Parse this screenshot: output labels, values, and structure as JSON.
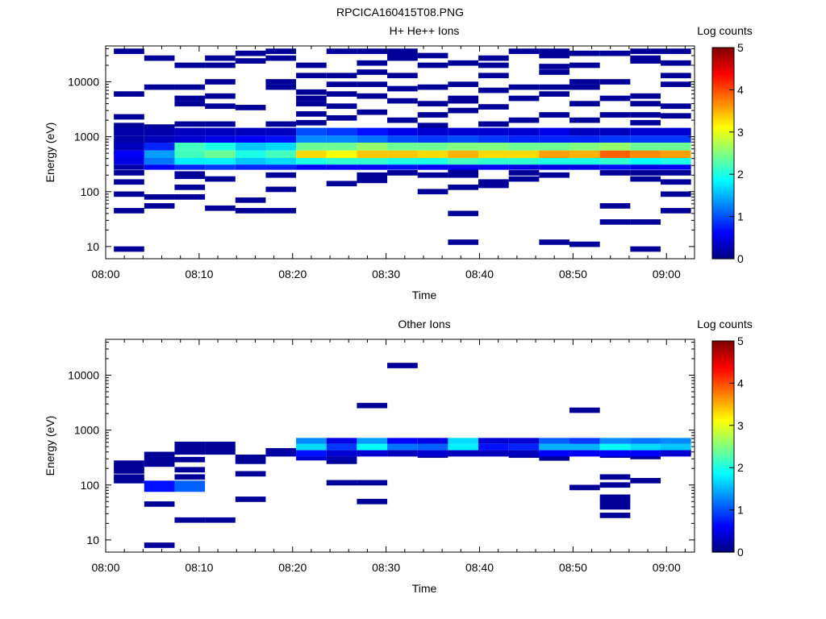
{
  "figure_title": "RPCICA160415T08.PNG",
  "chart_data": [
    {
      "type": "heatmap",
      "title": "H+ He++ Ions",
      "xlabel": "Time",
      "ylabel": "Energy (eV)",
      "colorbar_label": "Log counts",
      "colorbar_range": [
        0,
        5
      ],
      "colorbar_ticks": [
        "0",
        "1",
        "2",
        "3",
        "4",
        "5"
      ],
      "colormap": "jet",
      "y_scale": "log",
      "ylim": [
        6,
        45000
      ],
      "y_ticks": [
        "10",
        "100",
        "1000",
        "10000"
      ],
      "xlim": [
        "08:00",
        "09:03"
      ],
      "x_ticks": [
        "08:00",
        "08:10",
        "08:20",
        "08:30",
        "08:40",
        "08:50",
        "09:00"
      ],
      "time_bins": [
        "08:02:30",
        "08:05:45",
        "08:09:00",
        "08:12:15",
        "08:15:30",
        "08:18:45",
        "08:22:00",
        "08:25:15",
        "08:28:30",
        "08:31:45",
        "08:35:00",
        "08:38:15",
        "08:41:30",
        "08:44:45",
        "08:48:00",
        "08:51:15",
        "08:54:30",
        "08:57:45",
        "09:01:00"
      ],
      "bands": [
        {
          "emin": 780,
          "emax": 1050,
          "levels": [
            0.2,
            0.3,
            0.4,
            0.5,
            0.6,
            0.7,
            1.3,
            1.3,
            1.2,
            1.0,
            0.9,
            1.0,
            0.9,
            0.8,
            0.8,
            0.8,
            0.9,
            0.9,
            0.9
          ]
        },
        {
          "emin": 1050,
          "emax": 1450,
          "levels": [
            0.2,
            0.2,
            0.3,
            0.3,
            0.3,
            0.3,
            1.0,
            0.9,
            0.7,
            0.5,
            0.4,
            0.4,
            0.4,
            0.4,
            0.5,
            0.3,
            0.3,
            0.4,
            0.4
          ]
        },
        {
          "emin": 560,
          "emax": 780,
          "levels": [
            0.3,
            0.8,
            2.2,
            2.0,
            1.6,
            1.7,
            2.4,
            2.4,
            2.6,
            2.4,
            2.4,
            2.5,
            2.5,
            2.4,
            2.4,
            2.5,
            2.6,
            2.4,
            2.4
          ]
        },
        {
          "emin": 410,
          "emax": 560,
          "levels": [
            0.6,
            1.4,
            2.2,
            2.4,
            2.0,
            2.2,
            3.3,
            3.1,
            3.4,
            3.4,
            3.3,
            3.5,
            3.3,
            3.3,
            3.6,
            3.5,
            3.9,
            3.7,
            3.6
          ]
        },
        {
          "emin": 310,
          "emax": 410,
          "levels": [
            0.5,
            1.2,
            1.8,
            1.8,
            1.6,
            1.7,
            2.0,
            2.1,
            2.1,
            2.0,
            2.0,
            2.2,
            2.1,
            2.1,
            2.0,
            2.0,
            2.1,
            1.9,
            2.0
          ]
        },
        {
          "emin": 250,
          "emax": 310,
          "levels": [
            0.2,
            0.6,
            0.8,
            0.9,
            0.8,
            0.8,
            0.6,
            0.6,
            0.6,
            0.7,
            0.6,
            0.6,
            0.6,
            0.5,
            0.5,
            0.5,
            0.7,
            0.5,
            0.6
          ]
        }
      ],
      "sparse_bins": [
        {
          "t": 0,
          "e": [
            36000,
            6000,
            2300,
            1600,
            700,
            500,
            220,
            150,
            90,
            45,
            9
          ]
        },
        {
          "t": 1,
          "e": [
            27000,
            8000,
            1500,
            80,
            55
          ]
        },
        {
          "t": 2,
          "e": [
            20000,
            8000,
            5000,
            4000,
            1700,
            210,
            190,
            120,
            80
          ]
        },
        {
          "t": 3,
          "e": [
            27000,
            20000,
            10000,
            5500,
            3600,
            1700,
            170,
            50
          ]
        },
        {
          "t": 4,
          "e": [
            33000,
            24000,
            3400,
            70,
            45
          ]
        },
        {
          "t": 5,
          "e": [
            36000,
            27000,
            10000,
            8000,
            1700,
            200,
            110,
            45
          ]
        },
        {
          "t": 6,
          "e": [
            20000,
            13000,
            6500,
            5000,
            4000,
            2600,
            1800
          ]
        },
        {
          "t": 7,
          "e": [
            36000,
            13000,
            9000,
            6000,
            3600,
            2200,
            140
          ]
        },
        {
          "t": 8,
          "e": [
            36000,
            22000,
            15000,
            9000,
            5500,
            2800,
            200,
            160
          ]
        },
        {
          "t": 9,
          "e": [
            36000,
            30000,
            27000,
            13000,
            7500,
            4500,
            2000,
            220
          ]
        },
        {
          "t": 10,
          "e": [
            30000,
            20000,
            8000,
            4000,
            2500,
            1600,
            200,
            100
          ]
        },
        {
          "t": 11,
          "e": [
            22000,
            9000,
            5000,
            4500,
            3000,
            230,
            200,
            120,
            40,
            12
          ]
        },
        {
          "t": 12,
          "e": [
            27000,
            20000,
            13000,
            7000,
            3500,
            1700,
            150,
            130
          ]
        },
        {
          "t": 13,
          "e": [
            36000,
            8000,
            5000,
            2000,
            220,
            170
          ]
        },
        {
          "t": 14,
          "e": [
            36000,
            30000,
            19000,
            15000,
            8000,
            6000,
            2500,
            200,
            12
          ]
        },
        {
          "t": 15,
          "e": [
            33000,
            20000,
            10000,
            8000,
            4000,
            2000,
            11
          ]
        },
        {
          "t": 16,
          "e": [
            33000,
            10000,
            5000,
            2500,
            220,
            55,
            28
          ]
        },
        {
          "t": 17,
          "e": [
            36000,
            27000,
            24000,
            5500,
            4000,
            2500,
            1800,
            220,
            170,
            28,
            9
          ]
        },
        {
          "t": 18,
          "e": [
            36000,
            22000,
            13000,
            9000,
            3600,
            2400,
            220,
            150,
            90,
            45
          ]
        }
      ]
    },
    {
      "type": "heatmap",
      "title": "Other Ions",
      "xlabel": "Time",
      "ylabel": "Energy (eV)",
      "colorbar_label": "Log counts",
      "colorbar_range": [
        0,
        5
      ],
      "colorbar_ticks": [
        "0",
        "1",
        "2",
        "3",
        "4",
        "5"
      ],
      "colormap": "jet",
      "y_scale": "log",
      "ylim": [
        6,
        45000
      ],
      "y_ticks": [
        "10",
        "100",
        "1000",
        "10000"
      ],
      "xlim": [
        "08:00",
        "09:03"
      ],
      "x_ticks": [
        "08:00",
        "08:10",
        "08:20",
        "08:30",
        "08:40",
        "08:50",
        "09:00"
      ],
      "time_bins": [
        "08:02:30",
        "08:05:45",
        "08:09:00",
        "08:12:15",
        "08:15:30",
        "08:18:45",
        "08:22:00",
        "08:25:15",
        "08:28:30",
        "08:31:45",
        "08:35:00",
        "08:38:15",
        "08:41:30",
        "08:44:45",
        "08:48:00",
        "08:51:15",
        "08:54:30",
        "08:57:45",
        "09:01:00"
      ],
      "bands": [
        {
          "emin": 560,
          "emax": 720,
          "levels": [
            null,
            null,
            null,
            null,
            null,
            null,
            1.3,
            0.5,
            1.4,
            0.6,
            0.5,
            1.7,
            0.4,
            0.4,
            1.1,
            0.9,
            1.3,
            1.2,
            1.3
          ]
        },
        {
          "emin": 430,
          "emax": 560,
          "levels": [
            null,
            null,
            null,
            null,
            null,
            null,
            1.7,
            0.9,
            1.9,
            1.2,
            1.1,
            1.8,
            0.7,
            0.8,
            1.5,
            1.5,
            1.9,
            1.7,
            1.6
          ]
        },
        {
          "emin": 330,
          "emax": 430,
          "levels": [
            null,
            null,
            null,
            null,
            null,
            0.2,
            0.7,
            0.4,
            0.4,
            0.3,
            0.4,
            0.3,
            0.3,
            0.3,
            0.6,
            0.6,
            0.6,
            0.6,
            0.4
          ]
        },
        {
          "emin": 280,
          "emax": 330,
          "levels": [
            null,
            null,
            null,
            null,
            null,
            null,
            0.4,
            0.2,
            null,
            null,
            null,
            null,
            null,
            null,
            null,
            null,
            null,
            null,
            null
          ]
        },
        {
          "emin": 75,
          "emax": 120,
          "levels": [
            null,
            0.7,
            1.1,
            null,
            null,
            null,
            null,
            null,
            null,
            null,
            null,
            null,
            null,
            null,
            null,
            null,
            null,
            null,
            null
          ]
        }
      ],
      "sparse_bins": [
        {
          "t": 0,
          "e": [
            250,
            210,
            180,
            140,
            120
          ]
        },
        {
          "t": 1,
          "e": [
            360,
            290,
            240,
            45,
            8
          ]
        },
        {
          "t": 2,
          "e": [
            550,
            470,
            400,
            290,
            190,
            140,
            23
          ]
        },
        {
          "t": 3,
          "e": [
            550,
            470,
            400,
            23
          ]
        },
        {
          "t": 4,
          "e": [
            320,
            270,
            160,
            55
          ]
        },
        {
          "t": 5,
          "e": [
            420
          ]
        },
        {
          "t": 7,
          "e": [
            110,
            270
          ]
        },
        {
          "t": 8,
          "e": [
            2800,
            110,
            50
          ]
        },
        {
          "t": 9,
          "e": [
            15000
          ]
        },
        {
          "t": 10,
          "e": [
            350
          ]
        },
        {
          "t": 13,
          "e": [
            350
          ]
        },
        {
          "t": 14,
          "e": [
            310
          ]
        },
        {
          "t": 15,
          "e": [
            2300,
            90
          ]
        },
        {
          "t": 16,
          "e": [
            350,
            140,
            100,
            60,
            50,
            40,
            28
          ]
        },
        {
          "t": 17,
          "e": [
            330,
            120
          ]
        },
        {
          "t": 18,
          "e": [
            400
          ]
        }
      ]
    }
  ]
}
